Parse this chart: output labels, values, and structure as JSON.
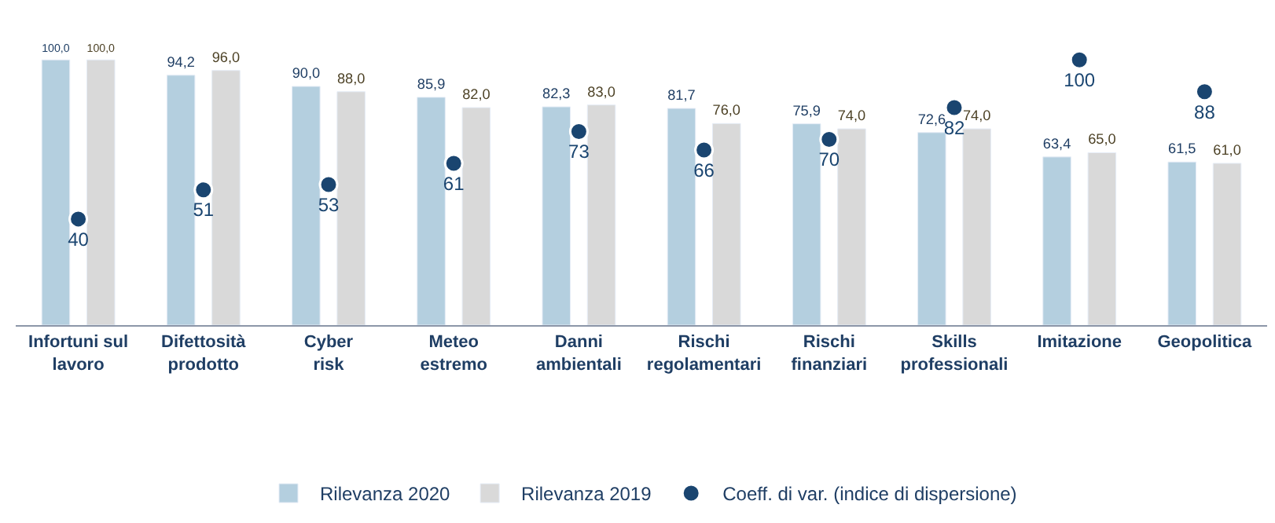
{
  "chart_data": {
    "type": "bar",
    "categories": [
      "Infortuni sul lavoro",
      "Difettosità prodotto",
      "Cyber risk",
      "Meteo estremo",
      "Danni ambientali",
      "Rischi regolamentari",
      "Rischi finanziari",
      "Skills professionali",
      "Imitazione",
      "Geopolitica"
    ],
    "series": [
      {
        "name": "Rilevanza 2020",
        "color": "#b4cfdf",
        "values": [
          100.0,
          94.2,
          90.0,
          85.9,
          82.3,
          81.7,
          75.9,
          72.6,
          63.4,
          61.5
        ],
        "value_labels": [
          "100,0",
          "94,2",
          "90,0",
          "85,9",
          "82,3",
          "81,7",
          "75,9",
          "72,6",
          "63,4",
          "61,5"
        ]
      },
      {
        "name": "Rilevanza 2019",
        "color": "#d9d9d9",
        "values": [
          100.0,
          96.0,
          88.0,
          82.0,
          83.0,
          76.0,
          74.0,
          74.0,
          65.0,
          61.0
        ],
        "value_labels": [
          "100,0",
          "96,0",
          "88,0",
          "82,0",
          "83,0",
          "76,0",
          "74,0",
          "74,0",
          "65,0",
          "61,0"
        ]
      },
      {
        "name": "Coeff. di var. (indice di dispersione)",
        "type": "scatter",
        "color": "#1a4570",
        "values": [
          40,
          51,
          53,
          61,
          73,
          66,
          70,
          82,
          100,
          88
        ],
        "value_labels": [
          "40",
          "51",
          "53",
          "61",
          "73",
          "66",
          "70",
          "82",
          "100",
          "88"
        ]
      }
    ],
    "tick_labels": "x",
    "legend": "bottom"
  }
}
